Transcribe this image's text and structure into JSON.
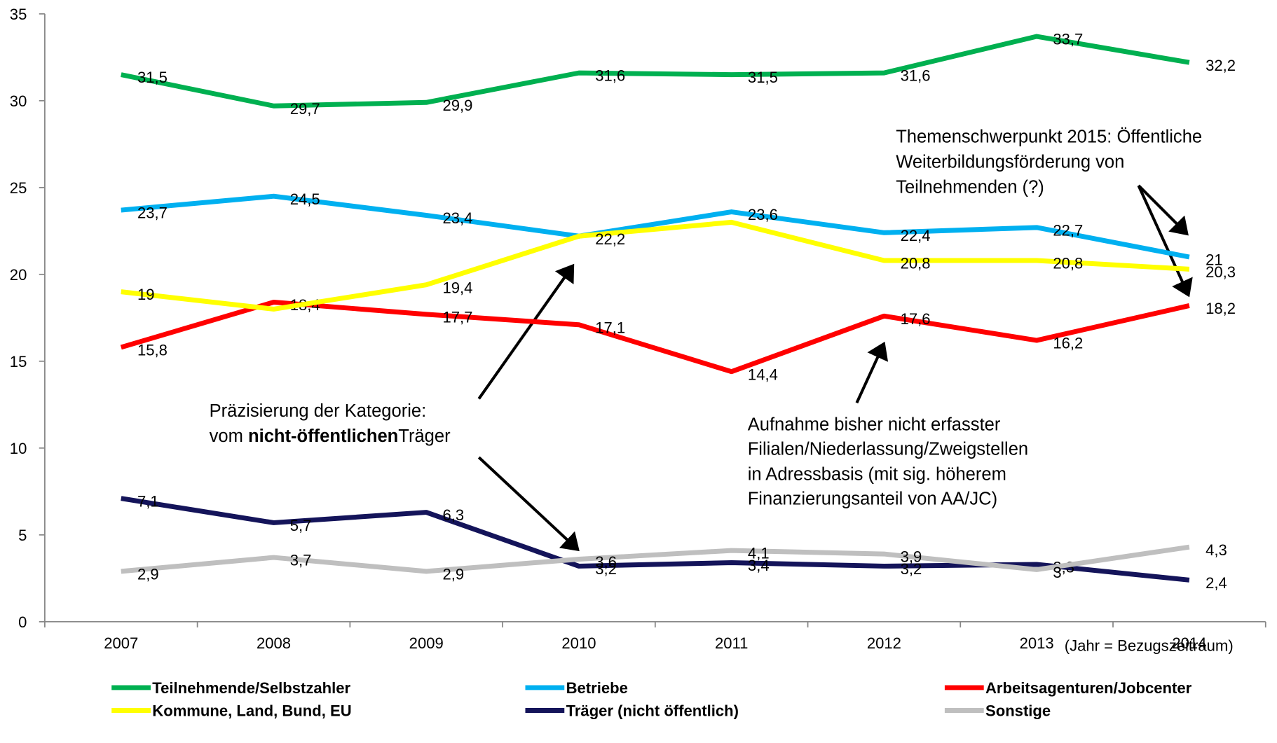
{
  "chart_data": {
    "type": "line",
    "categories": [
      "2007",
      "2008",
      "2009",
      "2010",
      "2011",
      "2012",
      "2013",
      "2014"
    ],
    "x_note": "(Jahr =  Bezugszeitraum)",
    "ylim": [
      0,
      35
    ],
    "yticks": [
      0,
      5,
      10,
      15,
      20,
      25,
      30,
      35
    ],
    "grid": false,
    "legend": "bottom",
    "series": [
      {
        "name": "Teilnehmende/Selbstzahler",
        "color": "#00b050",
        "values": [
          31.5,
          29.7,
          29.9,
          31.6,
          31.5,
          31.6,
          33.7,
          32.2
        ],
        "value_labels": [
          "31,5",
          "29,7",
          "29,9",
          "31,6",
          "31,5",
          "31,6",
          "33,7",
          "32,2"
        ]
      },
      {
        "name": "Betriebe",
        "color": "#00b0f0",
        "values": [
          23.7,
          24.5,
          23.4,
          22.2,
          23.6,
          22.4,
          22.7,
          21
        ],
        "value_labels": [
          "23,7",
          "24,5",
          "23,4",
          null,
          "23,6",
          "22,4",
          "22,7",
          "21"
        ]
      },
      {
        "name": "Arbeitsagenturen/Jobcenter",
        "color": "#ff0000",
        "values": [
          15.8,
          18.4,
          17.7,
          17.1,
          14.4,
          17.6,
          16.2,
          18.2
        ],
        "value_labels": [
          "15,8",
          "18,4",
          "17,7",
          "17,1",
          "14,4",
          "17,6",
          "16,2",
          "18,2"
        ]
      },
      {
        "name": "Kommune, Land, Bund, EU",
        "color": "#ffff00",
        "values": [
          19,
          18.0,
          19.4,
          22.2,
          23.0,
          20.8,
          20.8,
          20.3
        ],
        "value_labels": [
          "19",
          null,
          "19,4",
          "22,2",
          null,
          "20,8",
          "20,8",
          "20,3"
        ]
      },
      {
        "name": "Träger (nicht öffentlich)",
        "color": "#14145a",
        "values": [
          7.1,
          5.7,
          6.3,
          3.2,
          3.4,
          3.2,
          3.3,
          2.4
        ],
        "value_labels": [
          "7,1",
          "5,7",
          "6,3",
          "3,2",
          "3,4",
          "3,2",
          "3,3",
          "2,4"
        ]
      },
      {
        "name": "Sonstige",
        "color": "#bfbfbf",
        "values": [
          2.9,
          3.7,
          2.9,
          3.6,
          4.1,
          3.9,
          3,
          4.3
        ],
        "value_labels": [
          "2,9",
          "3,7",
          "2,9",
          "3,6",
          "4,1",
          "3,9",
          "3",
          "4,3"
        ]
      }
    ],
    "annotations": {
      "praezisierung": [
        "Präzisierung der Kategorie:",
        "vom ",
        "nicht-öffentlichen",
        "Träger"
      ],
      "themenschwerpunkt": [
        "Themenschwerpunkt 2015: Öffentliche",
        "Weiterbildungsförderung von",
        "Teilnehmenden (?)"
      ],
      "aufnahme": [
        "Aufnahme bisher nicht erfasster",
        "Filialen/Niederlassung/Zweigstellen",
        "in Adressbasis (mit sig. höherem",
        "Finanzierungsanteil von AA/JC)"
      ]
    }
  }
}
